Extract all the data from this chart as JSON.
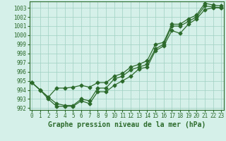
{
  "xlabel": "Graphe pression niveau de la mer (hPa)",
  "x": [
    0,
    1,
    2,
    3,
    4,
    5,
    6,
    7,
    8,
    9,
    10,
    11,
    12,
    13,
    14,
    15,
    16,
    17,
    18,
    19,
    20,
    21,
    22,
    23
  ],
  "line_top": [
    994.8,
    994.0,
    993.2,
    994.2,
    994.2,
    994.3,
    994.5,
    994.3,
    994.8,
    994.8,
    995.5,
    995.8,
    996.5,
    996.8,
    997.2,
    999.0,
    999.2,
    1001.2,
    1001.2,
    1001.8,
    1002.2,
    1003.5,
    1003.3,
    1003.2
  ],
  "line_mid": [
    994.8,
    994.0,
    993.2,
    992.5,
    992.3,
    992.3,
    993.0,
    992.8,
    994.2,
    994.2,
    995.2,
    995.5,
    996.2,
    996.5,
    996.8,
    998.5,
    999.0,
    1001.0,
    1001.0,
    1001.5,
    1002.0,
    1003.2,
    1003.1,
    1003.0
  ],
  "line_bot": [
    994.8,
    994.0,
    993.0,
    992.2,
    992.2,
    992.2,
    992.8,
    992.5,
    993.8,
    993.8,
    994.5,
    995.0,
    995.5,
    996.3,
    996.5,
    998.3,
    998.8,
    1000.5,
    1000.2,
    1001.2,
    1001.8,
    1002.8,
    1003.0,
    1003.0
  ],
  "line_color": "#2d6b2d",
  "bg_color": "#d4f0e8",
  "grid_color": "#a0d0c0",
  "ylim_min": 991.8,
  "ylim_max": 1003.7,
  "yticks": [
    992,
    993,
    994,
    995,
    996,
    997,
    998,
    999,
    1000,
    1001,
    1002,
    1003
  ],
  "tick_fontsize": 5.5,
  "label_fontsize": 7.0,
  "marker_size": 2.5,
  "line_width": 0.9
}
